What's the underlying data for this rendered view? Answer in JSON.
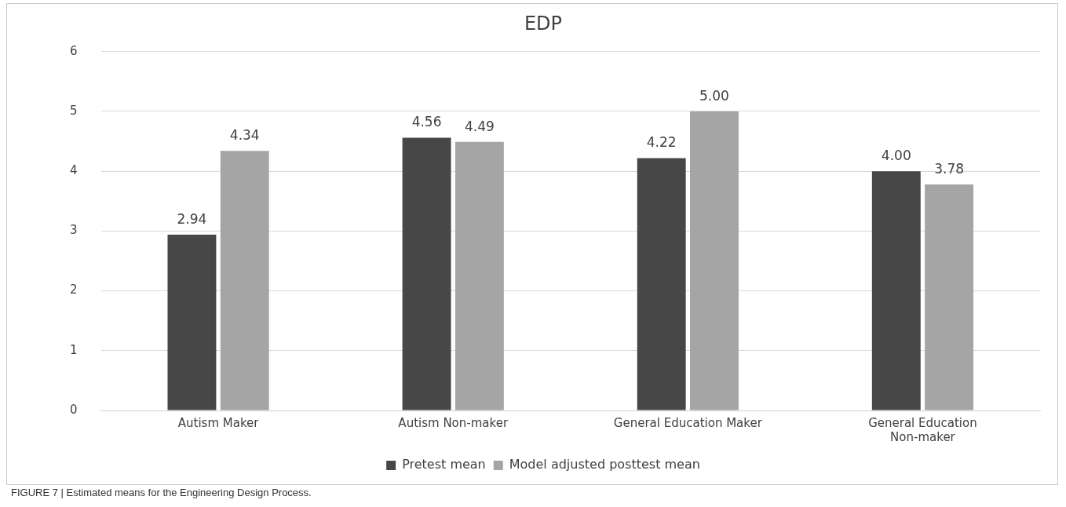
{
  "chart_data": {
    "type": "bar",
    "title": "EDP",
    "categories": [
      "Autism Maker",
      "Autism Non-maker",
      "General Education Maker",
      "General Education Non-maker"
    ],
    "series": [
      {
        "name": "Pretest mean",
        "color": "#474747",
        "values": [
          2.94,
          4.56,
          4.22,
          4.0
        ],
        "value_labels": [
          "2.94",
          "4.56",
          "4.22",
          "4.00"
        ]
      },
      {
        "name": "Model adjusted posttest mean",
        "color": "#a5a5a5",
        "values": [
          4.34,
          4.49,
          5.0,
          3.78
        ],
        "value_labels": [
          "4.34",
          "4.49",
          "5.00",
          "3.78"
        ]
      }
    ],
    "ylim": [
      0,
      6
    ],
    "yticks": [
      0,
      1,
      2,
      3,
      4,
      5,
      6
    ],
    "grid": "y",
    "legend": "bottom",
    "annotations": [
      "FIGURE 7 | Estimated means for the Engineering Design Process."
    ]
  }
}
